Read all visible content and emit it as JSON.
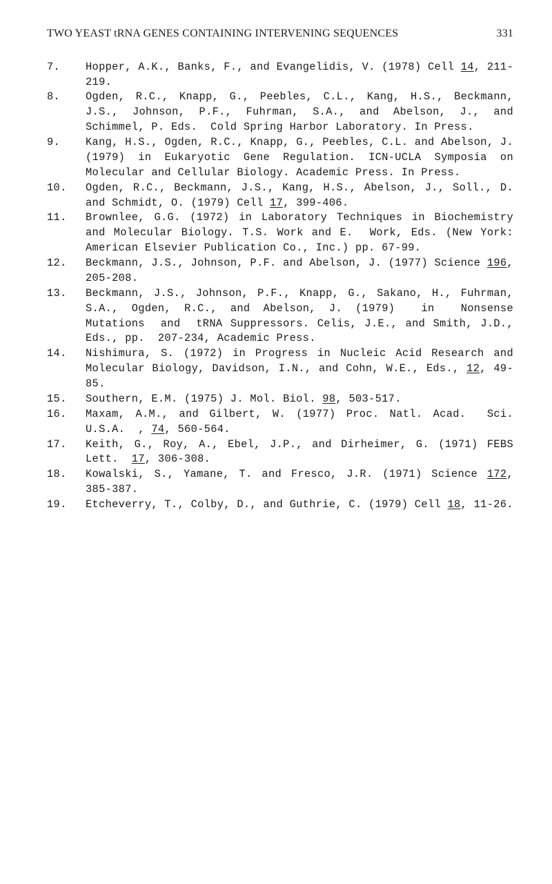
{
  "header": {
    "title": "TWO YEAST tRNA GENES CONTAINING INTERVENING SEQUENCES",
    "page_number": "331"
  },
  "references": [
    {
      "num": "7.",
      "html": "Hopper, A.K., Banks, F., and Evangelidis, V. (1978) Cell <span class=\"u\">14</span>, 211-219."
    },
    {
      "num": "8.",
      "html": "Ogden, R.C., Knapp, G., Peebles, C.L., Kang, H.S., Beckmann, J.S., Johnson, P.F., Fuhrman, S.A., and Abelson, J., and Schimmel, P. Eds.  Cold Spring Harbor Laboratory. In Press."
    },
    {
      "num": "9.",
      "html": "Kang, H.S., Ogden, R.C., Knapp, G., Peebles, C.L. and Abelson, J.  (1979) in Eukaryotic Gene Regulation. ICN-UCLA Symposia on Molecular and Cellular Biology. Academic Press. In Press."
    },
    {
      "num": "10.",
      "html": "Ogden, R.C., Beckmann, J.S., Kang, H.S., Abelson, J., Soll., D.  and Schmidt, O. (1979) Cell <span class=\"u\">17</span>, 399-406."
    },
    {
      "num": "11.",
      "html": "Brownlee, G.G. (1972) in Laboratory Techniques in Biochemistry and Molecular Biology. T.S. Work and E.  Work, Eds. (New York:  American Elsevier Publication Co., Inc.) pp. 67-99."
    },
    {
      "num": "12.",
      "html": "Beckmann, J.S., Johnson, P.F. and Abelson, J. (1977) Science <span class=\"u\">196</span>, 205-208."
    },
    {
      "num": "13.",
      "html": "Beckmann, J.S., Johnson, P.F., Knapp, G., Sakano, H., Fuhrman, S.A., Ogden, R.C., and Abelson, J. (1979)  in  Nonsense  Mutations  and  tRNA Suppressors. Celis, J.E., and Smith, J.D., Eds., pp.  207-234, Academic Press."
    },
    {
      "num": "14.",
      "html": "Nishimura, S. (1972) in Progress in Nucleic Acid Research and Molecular Biology, Davidson, I.N., and Cohn, W.E., Eds., <span class=\"u\">12</span>, 49-85."
    },
    {
      "num": "15.",
      "html": "Southern, E.M. (1975) J. Mol. Biol. <span class=\"u\">98</span>, 503-517."
    },
    {
      "num": "16.",
      "html": "Maxam, A.M., and Gilbert, W. (1977) Proc. Natl. Acad.  Sci.  U.S.A.  , <span class=\"u\">74</span>, 560-564."
    },
    {
      "num": "17.",
      "html": "Keith, G., Roy, A., Ebel, J.P., and Dirheimer, G. (1971) FEBS Lett.  <span class=\"u\">17</span>, 306-308."
    },
    {
      "num": "18.",
      "html": "Kowalski, S., Yamane, T. and Fresco, J.R. (1971) Science <span class=\"u\">172</span>, 385-387."
    },
    {
      "num": "19.",
      "html": "Etcheverry, T., Colby, D., and Guthrie, C. (1979) Cell <span class=\"u\">18</span>, 11-26."
    }
  ]
}
